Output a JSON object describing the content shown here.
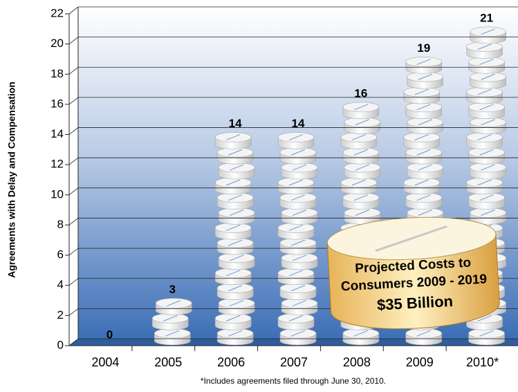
{
  "chart_data": {
    "type": "pill-stack",
    "y_label": "Agreements with Delay and Compensation",
    "categories": [
      "2004",
      "2005",
      "2006",
      "2007",
      "2008",
      "2009",
      "2010*"
    ],
    "values": [
      0,
      3,
      14,
      14,
      16,
      19,
      21
    ],
    "ylim": [
      0,
      22
    ],
    "yticks": [
      0,
      2,
      4,
      6,
      8,
      10,
      12,
      14,
      16,
      18,
      20,
      22
    ],
    "grid": true,
    "annotation": [
      "Projected Costs to",
      "Consumers 2009 - 2019",
      "$35 Billion"
    ],
    "note": "*Includes agreements filed through June 30, 2010."
  }
}
